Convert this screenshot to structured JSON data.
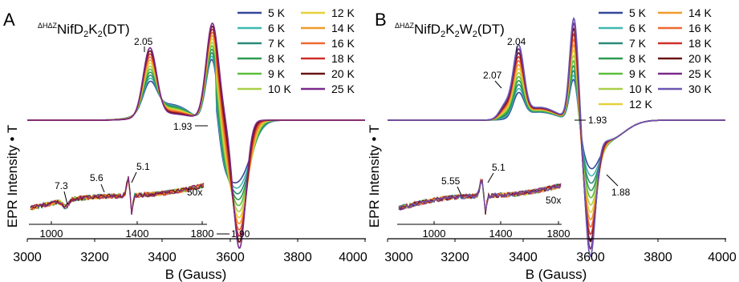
{
  "figure": {
    "colors": [
      "#35479a",
      "#3fb8b0",
      "#2a8a78",
      "#2e9a52",
      "#5cbf3c",
      "#a9d04a",
      "#e6d23a",
      "#f29a2a",
      "#ee6a30",
      "#cf2f2a",
      "#6a1414",
      "#7a2a8a",
      "#6a55b0"
    ]
  },
  "chart_data": [
    {
      "type": "line",
      "panel_label": "A",
      "title_sup": "ΔHΔZ",
      "title_parts": [
        "NifD",
        "2",
        "K",
        "2",
        "(DT)"
      ],
      "title": "ΔHΔZNifD2K2(DT)",
      "xlabel": "B (Gauss)",
      "ylabel": "EPR Intensity • T",
      "xlim": [
        3000,
        4000
      ],
      "xticks": [
        "3000",
        "3200",
        "3400",
        "3600",
        "3800",
        "4000"
      ],
      "series": [
        {
          "name": "5 K"
        },
        {
          "name": "6 K"
        },
        {
          "name": "7 K"
        },
        {
          "name": "8 K"
        },
        {
          "name": "9 K"
        },
        {
          "name": "10 K"
        },
        {
          "name": "12 K"
        },
        {
          "name": "14 K"
        },
        {
          "name": "16 K"
        },
        {
          "name": "18 K"
        },
        {
          "name": "20 K"
        },
        {
          "name": "25 K"
        }
      ],
      "annotations": [
        "2.05",
        "1.93",
        "1.90"
      ],
      "inset": {
        "xlim": [
          900,
          1800
        ],
        "xticks": [
          "1000",
          "1400",
          "1800"
        ],
        "scale_label": "50x",
        "annotations": [
          "7.3",
          "5.6",
          "5.1"
        ]
      }
    },
    {
      "type": "line",
      "panel_label": "B",
      "title_sup": "ΔHΔZ",
      "title_parts": [
        "NifD",
        "2",
        "K",
        "2",
        "W",
        "2",
        "(DT)"
      ],
      "title": "ΔHΔZNifD2K2W2(DT)",
      "xlabel": "B (Gauss)",
      "ylabel": "EPR Intensity • T",
      "xlim": [
        3000,
        4000
      ],
      "xticks": [
        "3000",
        "3200",
        "3400",
        "3600",
        "3800",
        "4000"
      ],
      "series": [
        {
          "name": "5 K"
        },
        {
          "name": "6 K"
        },
        {
          "name": "7 K"
        },
        {
          "name": "8 K"
        },
        {
          "name": "9 K"
        },
        {
          "name": "10 K"
        },
        {
          "name": "12 K"
        },
        {
          "name": "14 K"
        },
        {
          "name": "16 K"
        },
        {
          "name": "18 K"
        },
        {
          "name": "20 K"
        },
        {
          "name": "25 K"
        },
        {
          "name": "30 K"
        }
      ],
      "annotations": [
        "2.04",
        "2.07",
        "1.93",
        "1.88"
      ],
      "inset": {
        "xlim": [
          900,
          1800
        ],
        "xticks": [
          "1000",
          "1400",
          "1800"
        ],
        "scale_label": "50x",
        "annotations": [
          "5.55",
          "5.1"
        ]
      }
    }
  ]
}
